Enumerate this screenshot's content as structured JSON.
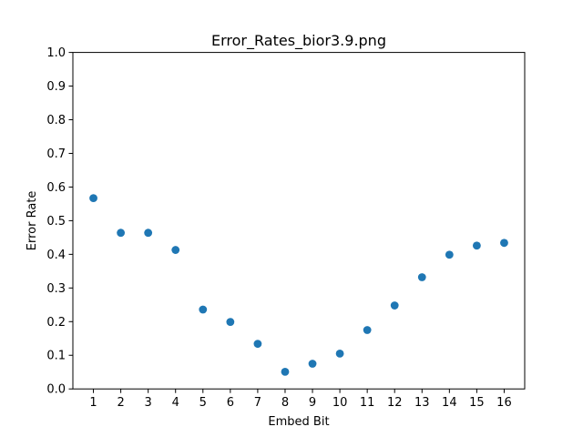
{
  "chart_data": {
    "type": "scatter",
    "title": "Error_Rates_bior3.9.png",
    "xlabel": "Embed Bit",
    "ylabel": "Error Rate",
    "x": [
      1,
      2,
      3,
      4,
      5,
      6,
      7,
      8,
      9,
      10,
      11,
      12,
      13,
      14,
      15,
      16
    ],
    "y": [
      0.567,
      0.464,
      0.464,
      0.413,
      0.236,
      0.199,
      0.134,
      0.051,
      0.075,
      0.105,
      0.175,
      0.248,
      0.332,
      0.399,
      0.426,
      0.434
    ],
    "xticks": [
      "1",
      "2",
      "3",
      "4",
      "5",
      "6",
      "7",
      "8",
      "9",
      "10",
      "11",
      "12",
      "13",
      "14",
      "15",
      "16"
    ],
    "yticks": [
      "0.0",
      "0.1",
      "0.2",
      "0.3",
      "0.4",
      "0.5",
      "0.6",
      "0.7",
      "0.8",
      "0.9",
      "1.0"
    ],
    "xlim": [
      0.25,
      16.75
    ],
    "ylim": [
      0,
      1
    ],
    "grid": false,
    "marker_color": "#1f77b4"
  }
}
